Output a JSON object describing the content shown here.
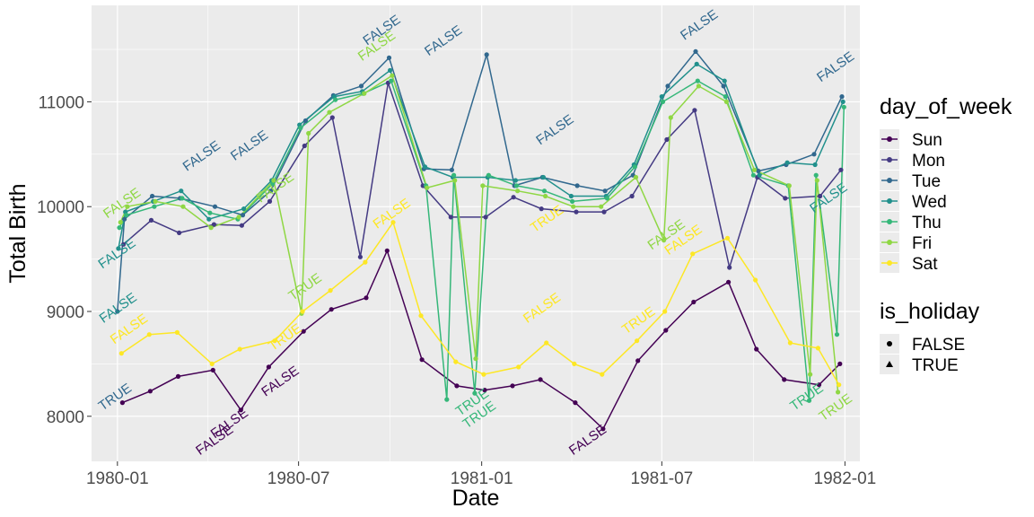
{
  "chart_data": {
    "type": "line",
    "title": "",
    "xlabel": "Date",
    "ylabel": "Total Birth",
    "xlim": [
      "1979-12-06",
      "1982-01-16"
    ],
    "ylim": [
      7570,
      11920
    ],
    "x_ticks": [
      "1980-01",
      "1980-07",
      "1981-01",
      "1981-07",
      "1982-01"
    ],
    "y_ticks": [
      8000,
      9000,
      10000,
      11000
    ],
    "grid": true,
    "legend_position": "right",
    "color_legend": {
      "title": "day_of_week",
      "entries": [
        {
          "name": "Sun",
          "color": "#440154"
        },
        {
          "name": "Mon",
          "color": "#443A83"
        },
        {
          "name": "Tue",
          "color": "#31688E"
        },
        {
          "name": "Wed",
          "color": "#21908C"
        },
        {
          "name": "Thu",
          "color": "#35B779"
        },
        {
          "name": "Fri",
          "color": "#8FD744"
        },
        {
          "name": "Sat",
          "color": "#FDE725"
        }
      ]
    },
    "shape_legend": {
      "title": "is_holiday",
      "entries": [
        {
          "name": "FALSE",
          "shape": "circle"
        },
        {
          "name": "TRUE",
          "shape": "triangle"
        }
      ]
    },
    "series": [
      {
        "name": "Sun",
        "points": [
          [
            "1980-01-06",
            8130
          ],
          [
            "1980-02-03",
            8240
          ],
          [
            "1980-03-02",
            8380
          ],
          [
            "1980-04-06",
            8440
          ],
          [
            "1980-05-04",
            8060
          ],
          [
            "1980-06-01",
            8470
          ],
          [
            "1980-07-06",
            8810
          ],
          [
            "1980-08-03",
            9020
          ],
          [
            "1980-09-07",
            9130
          ],
          [
            "1980-09-28",
            9580
          ],
          [
            "1980-11-02",
            8540
          ],
          [
            "1980-12-07",
            8290
          ],
          [
            "1981-01-04",
            8250
          ],
          [
            "1981-02-01",
            8290
          ],
          [
            "1981-03-01",
            8350
          ],
          [
            "1981-04-05",
            8130
          ],
          [
            "1981-05-03",
            7880
          ],
          [
            "1981-06-07",
            8530
          ],
          [
            "1981-07-05",
            8820
          ],
          [
            "1981-08-02",
            9090
          ],
          [
            "1981-09-06",
            9280
          ],
          [
            "1981-10-04",
            8640
          ],
          [
            "1981-11-01",
            8350
          ],
          [
            "1981-12-06",
            8300
          ],
          [
            "1981-12-27",
            8500
          ]
        ]
      },
      {
        "name": "Mon",
        "points": [
          [
            "1980-01-07",
            9640
          ],
          [
            "1980-02-04",
            9870
          ],
          [
            "1980-03-03",
            9750
          ],
          [
            "1980-04-07",
            9830
          ],
          [
            "1980-05-05",
            9820
          ],
          [
            "1980-06-02",
            10050
          ],
          [
            "1980-07-07",
            10580
          ],
          [
            "1980-08-04",
            10850
          ],
          [
            "1980-09-01",
            9520
          ],
          [
            "1980-09-29",
            11180
          ],
          [
            "1980-11-03",
            10200
          ],
          [
            "1980-12-01",
            9900
          ],
          [
            "1981-01-05",
            9900
          ],
          [
            "1981-02-02",
            10090
          ],
          [
            "1981-03-02",
            9980
          ],
          [
            "1981-04-06",
            9950
          ],
          [
            "1981-05-04",
            9950
          ],
          [
            "1981-06-01",
            10100
          ],
          [
            "1981-07-06",
            10640
          ],
          [
            "1981-08-03",
            10920
          ],
          [
            "1981-09-07",
            9420
          ],
          [
            "1981-10-05",
            10280
          ],
          [
            "1981-11-02",
            10080
          ],
          [
            "1981-12-07",
            10100
          ],
          [
            "1981-12-28",
            10350
          ]
        ]
      },
      {
        "name": "Tue",
        "points": [
          [
            "1980-01-01",
            9000
          ],
          [
            "1980-01-08",
            9880
          ],
          [
            "1980-02-05",
            10100
          ],
          [
            "1980-03-04",
            10080
          ],
          [
            "1980-04-08",
            10000
          ],
          [
            "1980-05-06",
            9920
          ],
          [
            "1980-06-03",
            10150
          ],
          [
            "1980-07-08",
            10820
          ],
          [
            "1980-08-05",
            11060
          ],
          [
            "1980-09-02",
            11150
          ],
          [
            "1980-09-30",
            11420
          ],
          [
            "1980-11-04",
            10360
          ],
          [
            "1980-12-02",
            10350
          ],
          [
            "1981-01-06",
            11450
          ],
          [
            "1981-02-03",
            10200
          ],
          [
            "1981-03-03",
            10280
          ],
          [
            "1981-04-07",
            10200
          ],
          [
            "1981-05-05",
            10150
          ],
          [
            "1981-06-02",
            10300
          ],
          [
            "1981-07-07",
            11150
          ],
          [
            "1981-08-04",
            11480
          ],
          [
            "1981-09-01",
            11150
          ],
          [
            "1981-10-06",
            10340
          ],
          [
            "1981-11-03",
            10400
          ],
          [
            "1981-12-01",
            10500
          ],
          [
            "1981-12-29",
            11050
          ]
        ]
      },
      {
        "name": "Wed",
        "points": [
          [
            "1980-01-02",
            9600
          ],
          [
            "1980-01-09",
            9950
          ],
          [
            "1980-02-06",
            10050
          ],
          [
            "1980-03-05",
            10150
          ],
          [
            "1980-04-02",
            9880
          ],
          [
            "1980-05-07",
            9980
          ],
          [
            "1980-06-04",
            10250
          ],
          [
            "1980-07-02",
            10780
          ],
          [
            "1980-08-06",
            11050
          ],
          [
            "1980-09-03",
            11100
          ],
          [
            "1980-10-01",
            11300
          ],
          [
            "1980-11-05",
            10380
          ],
          [
            "1980-12-03",
            10280
          ],
          [
            "1981-01-07",
            10280
          ],
          [
            "1981-02-04",
            10250
          ],
          [
            "1981-03-04",
            10280
          ],
          [
            "1981-04-01",
            10100
          ],
          [
            "1981-05-06",
            10100
          ],
          [
            "1981-06-03",
            10400
          ],
          [
            "1981-07-01",
            11050
          ],
          [
            "1981-08-05",
            11360
          ],
          [
            "1981-09-02",
            11200
          ],
          [
            "1981-10-07",
            10300
          ],
          [
            "1981-11-04",
            10420
          ],
          [
            "1981-12-02",
            10400
          ],
          [
            "1981-12-30",
            11000
          ]
        ]
      },
      {
        "name": "Thu",
        "points": [
          [
            "1980-01-03",
            9800
          ],
          [
            "1980-01-10",
            9920
          ],
          [
            "1980-02-07",
            10000
          ],
          [
            "1980-03-06",
            10080
          ],
          [
            "1980-04-03",
            9940
          ],
          [
            "1980-05-01",
            9880
          ],
          [
            "1980-06-05",
            10220
          ],
          [
            "1980-07-03",
            10750
          ],
          [
            "1980-08-07",
            11020
          ],
          [
            "1980-09-04",
            11080
          ],
          [
            "1980-10-02",
            11200
          ],
          [
            "1980-11-06",
            10200
          ],
          [
            "1980-11-27",
            8160
          ],
          [
            "1980-12-04",
            10300
          ],
          [
            "1980-12-25",
            8220
          ],
          [
            "1981-01-08",
            10300
          ],
          [
            "1981-02-05",
            10200
          ],
          [
            "1981-03-05",
            10150
          ],
          [
            "1981-04-02",
            10050
          ],
          [
            "1981-05-07",
            10080
          ],
          [
            "1981-06-04",
            10380
          ],
          [
            "1981-07-02",
            11000
          ],
          [
            "1981-08-06",
            11200
          ],
          [
            "1981-09-03",
            11050
          ],
          [
            "1981-10-01",
            10300
          ],
          [
            "1981-11-05",
            10200
          ],
          [
            "1981-11-26",
            8150
          ],
          [
            "1981-12-03",
            10300
          ],
          [
            "1981-12-24",
            8780
          ],
          [
            "1981-12-31",
            10950
          ]
        ]
      },
      {
        "name": "Fri",
        "points": [
          [
            "1980-01-04",
            9850
          ],
          [
            "1980-01-11",
            10000
          ],
          [
            "1980-02-08",
            10050
          ],
          [
            "1980-03-07",
            10000
          ],
          [
            "1980-04-04",
            9800
          ],
          [
            "1980-05-02",
            9900
          ],
          [
            "1980-06-06",
            10250
          ],
          [
            "1980-07-04",
            8980
          ],
          [
            "1980-07-11",
            10700
          ],
          [
            "1980-08-01",
            10900
          ],
          [
            "1980-09-05",
            11080
          ],
          [
            "1980-10-03",
            11250
          ],
          [
            "1980-11-07",
            10180
          ],
          [
            "1980-12-05",
            10250
          ],
          [
            "1980-12-26",
            8550
          ],
          [
            "1981-01-02",
            10200
          ],
          [
            "1981-02-06",
            10150
          ],
          [
            "1981-03-06",
            10100
          ],
          [
            "1981-04-03",
            10000
          ],
          [
            "1981-05-01",
            10000
          ],
          [
            "1981-06-05",
            10280
          ],
          [
            "1981-07-03",
            9680
          ],
          [
            "1981-07-10",
            10850
          ],
          [
            "1981-08-07",
            11150
          ],
          [
            "1981-09-04",
            11000
          ],
          [
            "1981-10-02",
            10350
          ],
          [
            "1981-11-06",
            10200
          ],
          [
            "1981-11-27",
            8400
          ],
          [
            "1981-12-04",
            10250
          ],
          [
            "1981-12-25",
            8230
          ]
        ]
      },
      {
        "name": "Sat",
        "points": [
          [
            "1980-01-05",
            8600
          ],
          [
            "1980-02-02",
            8780
          ],
          [
            "1980-03-01",
            8800
          ],
          [
            "1980-04-05",
            8500
          ],
          [
            "1980-05-03",
            8640
          ],
          [
            "1980-06-07",
            8720
          ],
          [
            "1980-07-05",
            9000
          ],
          [
            "1980-08-02",
            9200
          ],
          [
            "1980-09-06",
            9470
          ],
          [
            "1980-10-04",
            9850
          ],
          [
            "1980-11-01",
            8960
          ],
          [
            "1980-12-06",
            8520
          ],
          [
            "1981-01-03",
            8400
          ],
          [
            "1981-02-07",
            8470
          ],
          [
            "1981-03-07",
            8700
          ],
          [
            "1981-04-04",
            8500
          ],
          [
            "1981-05-02",
            8400
          ],
          [
            "1981-06-06",
            8720
          ],
          [
            "1981-07-04",
            9000
          ],
          [
            "1981-08-01",
            9550
          ],
          [
            "1981-09-05",
            9700
          ],
          [
            "1981-10-03",
            9300
          ],
          [
            "1981-11-07",
            8700
          ],
          [
            "1981-12-05",
            8650
          ],
          [
            "1981-12-26",
            8300
          ]
        ]
      }
    ],
    "point_labels": [
      {
        "date": "1980-11-26",
        "value": 11550,
        "text": "FALSE",
        "series": "Tue"
      },
      {
        "date": "1980-09-25",
        "value": 11650,
        "text": "FALSE",
        "series": "Tue"
      },
      {
        "date": "1981-08-10",
        "value": 11700,
        "text": "FALSE",
        "series": "Tue"
      },
      {
        "date": "1981-12-25",
        "value": 11300,
        "text": "FALSE",
        "series": "Tue"
      },
      {
        "date": "1980-03-28",
        "value": 10450,
        "text": "FALSE",
        "series": "Tue"
      },
      {
        "date": "1980-05-15",
        "value": 10550,
        "text": "FALSE",
        "series": "Tue"
      },
      {
        "date": "1981-03-18",
        "value": 10700,
        "text": "FALSE",
        "series": "Tue"
      },
      {
        "date": "1980-01-04",
        "value": 9000,
        "text": "FALSE",
        "series": "Wed"
      },
      {
        "date": "1980-01-03",
        "value": 9520,
        "text": "FALSE",
        "series": "Wed"
      },
      {
        "date": "1981-12-18",
        "value": 10050,
        "text": "FALSE",
        "series": "Wed"
      },
      {
        "date": "1980-01-08",
        "value": 10000,
        "text": "FALSE",
        "series": "Fri"
      },
      {
        "date": "1980-06-10",
        "value": 10150,
        "text": "FALSE",
        "series": "Fri"
      },
      {
        "date": "1981-07-08",
        "value": 9700,
        "text": "FALSE",
        "series": "Fri"
      },
      {
        "date": "1980-09-20",
        "value": 11500,
        "text": "FALSE",
        "series": "Fri"
      },
      {
        "date": "1980-01-15",
        "value": 8800,
        "text": "FALSE",
        "series": "Sat"
      },
      {
        "date": "1980-10-05",
        "value": 9900,
        "text": "FALSE",
        "series": "Sat"
      },
      {
        "date": "1981-07-25",
        "value": 9650,
        "text": "FALSE",
        "series": "Sat"
      },
      {
        "date": "1981-03-05",
        "value": 9000,
        "text": "FALSE",
        "series": "Sat"
      },
      {
        "date": "1980-06-15",
        "value": 8300,
        "text": "FALSE",
        "series": "Sun"
      },
      {
        "date": "1980-04-25",
        "value": 7900,
        "text": "FALSE",
        "series": "Sun"
      },
      {
        "date": "1980-04-10",
        "value": 7740,
        "text": "FALSE",
        "series": "Sun"
      },
      {
        "date": "1981-04-20",
        "value": 7740,
        "text": "FALSE",
        "series": "Sun"
      },
      {
        "date": "1980-12-25",
        "value": 8100,
        "text": "TRUE",
        "series": "Thu"
      },
      {
        "date": "1981-01-01",
        "value": 7980,
        "text": "TRUE",
        "series": "Thu"
      },
      {
        "date": "1980-06-20",
        "value": 8720,
        "text": "TRUE",
        "series": "Sat"
      },
      {
        "date": "1980-07-10",
        "value": 9200,
        "text": "TRUE",
        "series": "Fri"
      },
      {
        "date": "1981-03-10",
        "value": 9850,
        "text": "TRUE",
        "series": "Sat"
      },
      {
        "date": "1981-06-10",
        "value": 8880,
        "text": "TRUE",
        "series": "Sat"
      },
      {
        "date": "1981-12-25",
        "value": 8050,
        "text": "TRUE",
        "series": "Fri"
      },
      {
        "date": "1981-11-26",
        "value": 8150,
        "text": "TRUE",
        "series": "Thu"
      },
      {
        "date": "1980-01-01",
        "value": 8150,
        "text": "TRUE",
        "series": "Tue"
      }
    ]
  }
}
